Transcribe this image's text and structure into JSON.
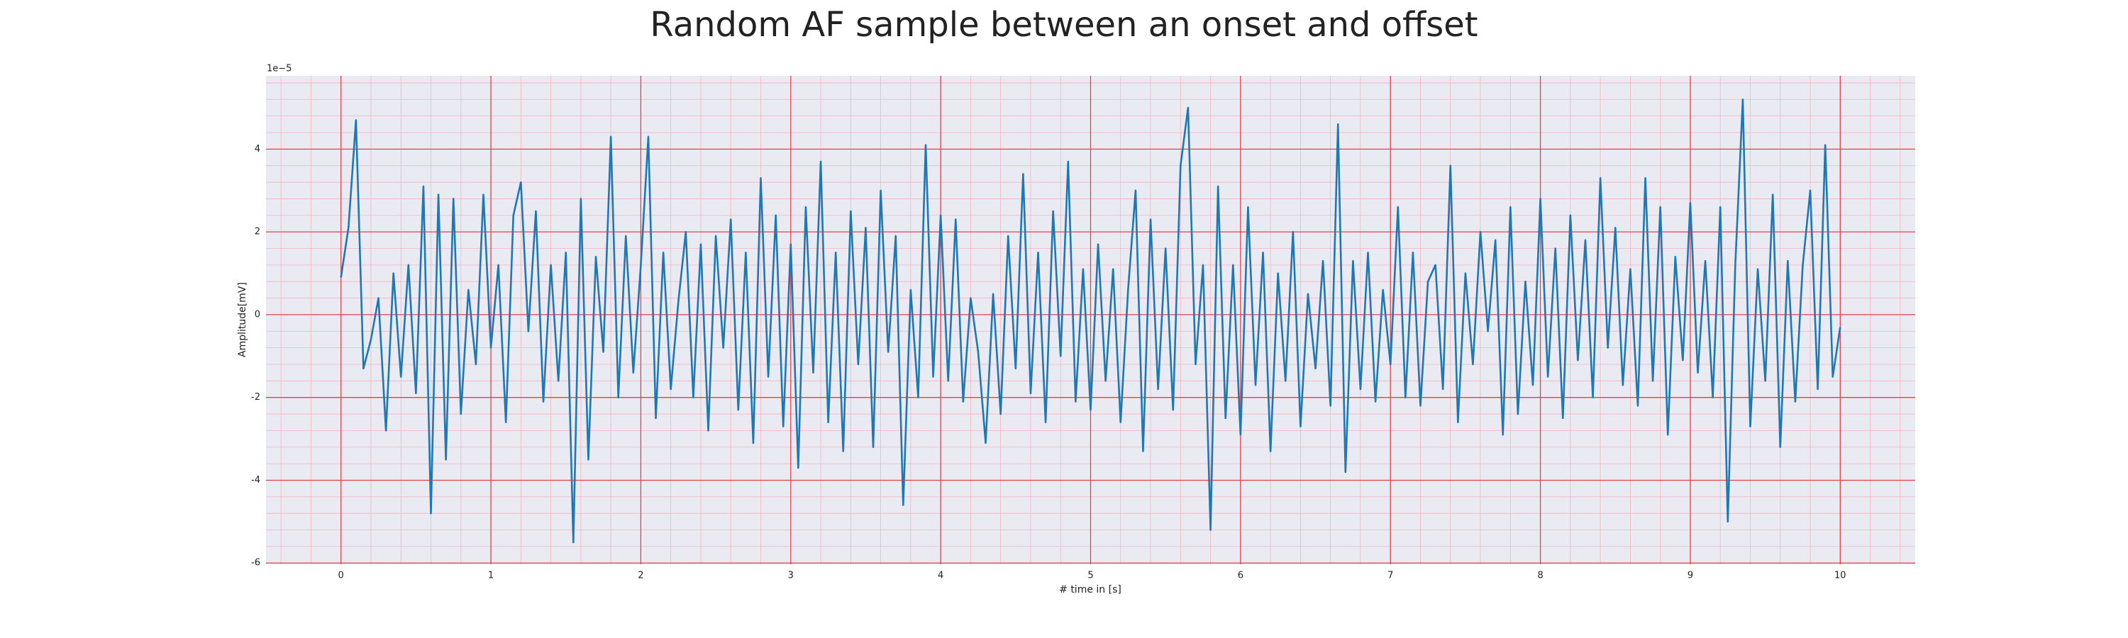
{
  "chart_data": {
    "type": "line",
    "title": "Random AF sample between an onset and offset",
    "xlabel": "# time in [s]",
    "ylabel": "Amplitude[mV]",
    "y_offset_label": "1e−5",
    "color": "#1f77b4",
    "grid": true,
    "minor_grid": true,
    "xlim": [
      -0.5,
      10.5
    ],
    "ylim": [
      -6.03,
      5.77
    ],
    "xticks": [
      0,
      1,
      2,
      3,
      4,
      5,
      6,
      7,
      8,
      9,
      10
    ],
    "yticks": [
      -6,
      -4,
      -2,
      0,
      2,
      4
    ],
    "x": [
      0,
      0.05,
      0.1,
      0.15,
      0.2,
      0.25,
      0.3,
      0.35,
      0.4,
      0.45,
      0.5,
      0.55,
      0.6,
      0.65,
      0.7,
      0.75,
      0.8,
      0.85,
      0.9,
      0.95,
      1,
      1.05,
      1.1,
      1.15,
      1.2,
      1.25,
      1.3,
      1.35,
      1.4,
      1.45,
      1.5,
      1.55,
      1.6,
      1.65,
      1.7,
      1.75,
      1.8,
      1.85,
      1.9,
      1.95,
      2,
      2.05,
      2.1,
      2.15,
      2.2,
      2.25,
      2.3,
      2.35,
      2.4,
      2.45,
      2.5,
      2.55,
      2.6,
      2.65,
      2.7,
      2.75,
      2.8,
      2.85,
      2.9,
      2.95,
      3,
      3.05,
      3.1,
      3.15,
      3.2,
      3.25,
      3.3,
      3.35,
      3.4,
      3.45,
      3.5,
      3.55,
      3.6,
      3.65,
      3.7,
      3.75,
      3.8,
      3.85,
      3.9,
      3.95,
      4,
      4.05,
      4.1,
      4.15,
      4.2,
      4.25,
      4.3,
      4.35,
      4.4,
      4.45,
      4.5,
      4.55,
      4.6,
      4.65,
      4.7,
      4.75,
      4.8,
      4.85,
      4.9,
      4.95,
      5,
      5.05,
      5.1,
      5.15,
      5.2,
      5.25,
      5.3,
      5.35,
      5.4,
      5.45,
      5.5,
      5.55,
      5.6,
      5.65,
      5.7,
      5.75,
      5.8,
      5.85,
      5.9,
      5.95,
      6,
      6.05,
      6.1,
      6.15,
      6.2,
      6.25,
      6.3,
      6.35,
      6.4,
      6.45,
      6.5,
      6.55,
      6.6,
      6.65,
      6.7,
      6.75,
      6.8,
      6.85,
      6.9,
      6.95,
      7,
      7.05,
      7.1,
      7.15,
      7.2,
      7.25,
      7.3,
      7.35,
      7.4,
      7.45,
      7.5,
      7.55,
      7.6,
      7.65,
      7.7,
      7.75,
      7.8,
      7.85,
      7.9,
      7.95,
      8,
      8.05,
      8.1,
      8.15,
      8.2,
      8.25,
      8.3,
      8.35,
      8.4,
      8.45,
      8.5,
      8.55,
      8.6,
      8.65,
      8.7,
      8.75,
      8.8,
      8.85,
      8.9,
      8.95,
      9,
      9.05,
      9.1,
      9.15,
      9.2,
      9.25,
      9.3,
      9.35,
      9.4,
      9.45,
      9.5,
      9.55,
      9.6,
      9.65,
      9.7,
      9.75,
      9.8,
      9.85,
      9.9,
      9.95,
      10
    ],
    "values": [
      0.9,
      2.1,
      4.7,
      -1.3,
      -0.6,
      0.4,
      -2.8,
      1.0,
      -1.5,
      1.2,
      -1.9,
      3.1,
      -4.8,
      2.9,
      -3.5,
      2.8,
      -2.4,
      0.6,
      -1.2,
      2.9,
      -0.8,
      1.2,
      -2.6,
      2.4,
      3.2,
      -0.4,
      2.5,
      -2.1,
      1.2,
      -1.6,
      1.5,
      -5.5,
      2.8,
      -3.5,
      1.4,
      -0.9,
      4.3,
      -2.0,
      1.9,
      -1.4,
      1.2,
      4.3,
      -2.5,
      1.5,
      -1.8,
      0.3,
      2.0,
      -2.0,
      1.7,
      -2.8,
      1.9,
      -0.8,
      2.3,
      -2.3,
      1.5,
      -3.1,
      3.3,
      -1.5,
      2.4,
      -2.7,
      1.7,
      -3.7,
      2.6,
      -1.4,
      3.7,
      -2.6,
      1.5,
      -3.3,
      2.5,
      -1.2,
      2.1,
      -3.2,
      3.0,
      -0.9,
      1.9,
      -4.6,
      0.6,
      -2.0,
      4.1,
      -1.5,
      2.4,
      -1.6,
      2.3,
      -2.1,
      0.4,
      -0.9,
      -3.1,
      0.5,
      -2.4,
      1.9,
      -1.3,
      3.4,
      -1.9,
      1.5,
      -2.6,
      2.5,
      -1.0,
      3.7,
      -2.1,
      1.1,
      -2.3,
      1.7,
      -1.6,
      1.1,
      -2.6,
      0.6,
      3.0,
      -3.3,
      2.3,
      -1.8,
      1.6,
      -2.3,
      3.6,
      5.0,
      -1.2,
      1.2,
      -5.2,
      3.1,
      -2.5,
      1.2,
      -2.9,
      2.6,
      -1.7,
      1.5,
      -3.3,
      1.0,
      -1.6,
      2.0,
      -2.7,
      0.5,
      -1.3,
      1.3,
      -2.2,
      4.6,
      -3.8,
      1.3,
      -1.8,
      1.5,
      -2.1,
      0.6,
      -1.2,
      2.6,
      -2.0,
      1.5,
      -2.2,
      0.8,
      1.2,
      -1.8,
      3.6,
      -2.6,
      1.0,
      -1.2,
      2.0,
      -0.4,
      1.8,
      -2.9,
      2.6,
      -2.4,
      0.8,
      -1.7,
      2.8,
      -1.5,
      1.6,
      -2.5,
      2.4,
      -1.1,
      1.8,
      -2.0,
      3.3,
      -0.8,
      2.1,
      -1.7,
      1.1,
      -2.2,
      3.3,
      -1.6,
      2.6,
      -2.9,
      1.4,
      -1.1,
      2.7,
      -1.4,
      1.3,
      -2.0,
      2.6,
      -5.0,
      1.2,
      5.2,
      -2.7,
      1.1,
      -1.6,
      2.9,
      -3.2,
      1.3,
      -2.1,
      1.2,
      3.0,
      -1.8,
      4.1,
      -1.5,
      -0.3
    ]
  }
}
